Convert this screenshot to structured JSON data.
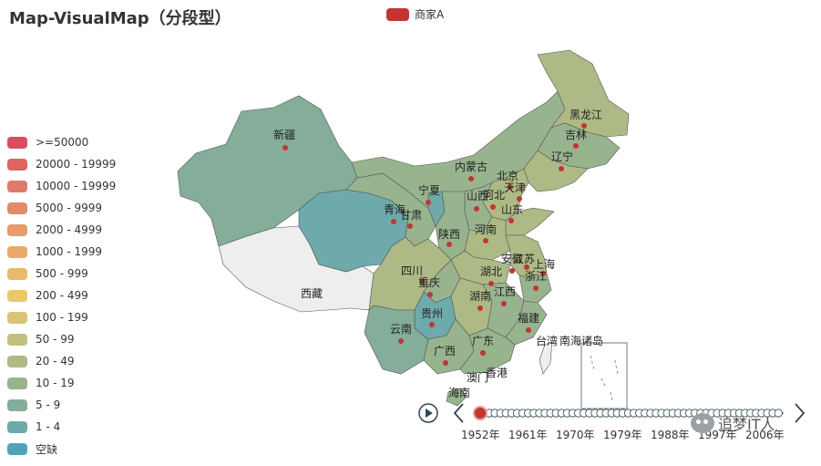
{
  "title": "Map-VisualMap（分段型）",
  "legend": {
    "series_name": "商家A",
    "color": "#c23531"
  },
  "visual_map": {
    "pieces": [
      {
        "label": ">=50000",
        "color": "#d94e5d"
      },
      {
        "label": "20000 - 19999",
        "color": "#dc6461"
      },
      {
        "label": "10000 - 19999",
        "color": "#df7a6a"
      },
      {
        "label": "5000 - 9999",
        "color": "#e38b69"
      },
      {
        "label": "2000 - 4999",
        "color": "#e79c69"
      },
      {
        "label": "1000 - 1999",
        "color": "#eaa96a"
      },
      {
        "label": "500 - 999",
        "color": "#eab96c"
      },
      {
        "label": "200 - 499",
        "color": "#eac86a"
      },
      {
        "label": "100 - 199",
        "color": "#d8c478"
      },
      {
        "label": "50 - 99",
        "color": "#c3c080"
      },
      {
        "label": "20 - 49",
        "color": "#aeba86"
      },
      {
        "label": "10 - 19",
        "color": "#98b48e"
      },
      {
        "label": "5 - 9",
        "color": "#84ad9a"
      },
      {
        "label": "1 - 4",
        "color": "#6eaaab"
      },
      {
        "label": "空缺",
        "color": "#50a3ba"
      }
    ]
  },
  "map_labels": {
    "xinjiang": "新疆",
    "xizang": "西藏",
    "qinghai": "青海",
    "gansu": "甘肃",
    "ningxia": "宁夏",
    "neimenggu": "内蒙古",
    "heilongjiang": "黑龙江",
    "jilin": "吉林",
    "liaoning": "辽宁",
    "beijing": "北京",
    "tianjin": "天津",
    "hebei": "河北",
    "shanxi": "山西",
    "shandong": "山东",
    "shaanxi": "陕西",
    "henan": "河南",
    "sichuan": "四川",
    "chongqing": "重庆",
    "hubei": "湖北",
    "anhui": "安徽",
    "jiangsu": "江苏",
    "shanghai": "上海",
    "zhejiang": "浙江",
    "hunan": "湖南",
    "jiangxi": "江西",
    "guizhou": "贵州",
    "yunnan": "云南",
    "fujian": "福建",
    "guangxi": "广西",
    "guangdong": "广东",
    "taiwan": "台湾",
    "nanhai": "南海诸岛",
    "aomen": "澳门",
    "xianggang": "香港",
    "hainan": "海南"
  },
  "timeline": {
    "labels": [
      "1952年",
      "1961年",
      "1970年",
      "1979年",
      "1988年",
      "1997年",
      "2006年"
    ],
    "current": "1952年"
  },
  "watermark": "追梦IT人"
}
